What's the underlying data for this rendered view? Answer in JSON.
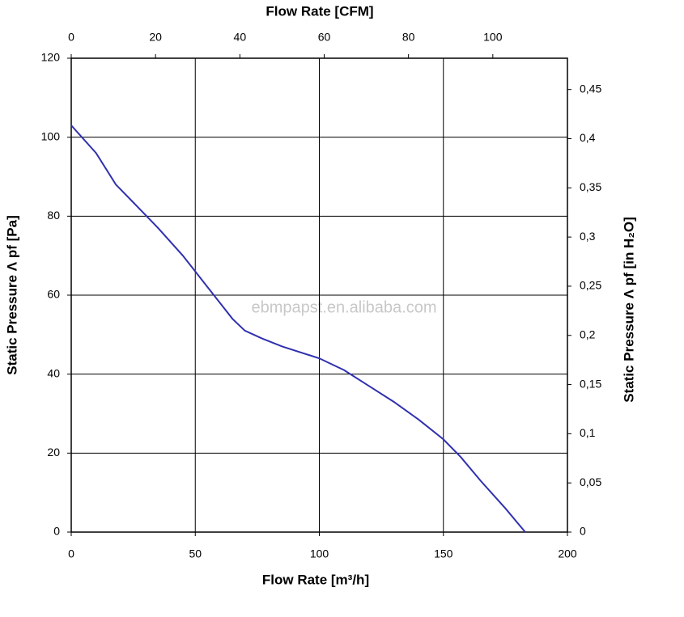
{
  "chart_data": {
    "type": "line",
    "title_top": "Flow Rate [CFM]",
    "x_label": "Flow Rate [m³/h]",
    "y_label": "Static Pressure Λ pf [Pa]",
    "y2_label": "Static Pressure Λ pf [in H₂O]",
    "watermark": "ebmpapst.en.alibaba.com",
    "x": [
      0,
      10,
      18,
      25,
      35,
      45,
      55,
      65,
      70,
      77,
      85,
      100,
      110,
      120,
      130,
      140,
      150,
      157,
      165,
      175,
      183
    ],
    "series": [
      {
        "color": "#3030b0",
        "values": [
          103,
          96,
          88,
          83.5,
          77,
          70,
          62,
          54,
          51,
          49,
          47,
          44,
          41,
          37,
          33,
          28.5,
          23.5,
          19,
          13,
          6,
          0
        ]
      }
    ],
    "xlim": [
      0,
      200
    ],
    "xticks": [
      0,
      50,
      100,
      150,
      200
    ],
    "ylim": [
      0,
      120
    ],
    "yticks": [
      0,
      20,
      40,
      60,
      80,
      100,
      120
    ],
    "x2lim": [
      0,
      117.7
    ],
    "x2ticks": [
      0,
      20,
      40,
      60,
      80,
      100
    ],
    "y2lim": [
      0,
      0.4818
    ],
    "y2ticks": [
      0,
      {
        "value": 0.05,
        "label": "0,05"
      },
      {
        "value": 0.1,
        "label": "0,1"
      },
      {
        "value": 0.15,
        "label": "0,15"
      },
      {
        "value": 0.2,
        "label": "0,2"
      },
      {
        "value": 0.25,
        "label": "0,25"
      },
      {
        "value": 0.3,
        "label": "0,3"
      },
      {
        "value": 0.35,
        "label": "0,35"
      },
      {
        "value": 0.4,
        "label": "0,4"
      },
      {
        "value": 0.45,
        "label": "0,45"
      }
    ],
    "grid": true
  }
}
